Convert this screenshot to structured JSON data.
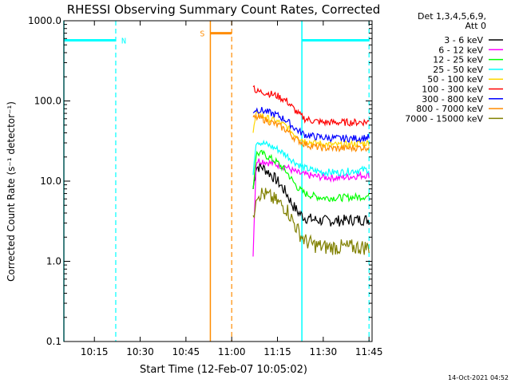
{
  "chart_data": {
    "type": "line",
    "title": "RHESSI Observing Summary Count Rates, Corrected",
    "xlabel": "Start Time (12-Feb-07 10:05:02)",
    "ylabel": "Corrected Count Rate (s⁻¹ detector⁻¹)",
    "xlim": [
      "10:05",
      "11:46"
    ],
    "ylim": [
      0.1,
      1000
    ],
    "yscale": "log",
    "x_ticks": [
      "10:15",
      "10:30",
      "10:45",
      "11:00",
      "11:15",
      "11:30",
      "11:45"
    ],
    "y_ticks": [
      "0.1",
      "1.0",
      "10.0",
      "100.0",
      "1000.0"
    ],
    "legend_header": [
      "Det 1,3,4,5,6,9,",
      "Att 0"
    ],
    "legend_position": "right",
    "timestamp": "14-Oct-2021 04:52",
    "series": [
      {
        "name": "3 - 6 keV",
        "color": "#000000",
        "x": [
          "11:07",
          "11:08",
          "11:10",
          "11:12",
          "11:15",
          "11:18",
          "11:20",
          "11:22",
          "11:24",
          "11:27",
          "11:30",
          "11:35",
          "11:40",
          "11:45"
        ],
        "values": [
          8,
          15,
          15,
          13,
          10,
          7,
          5,
          4,
          3.5,
          3.3,
          3.2,
          3.2,
          3.3,
          3.3
        ]
      },
      {
        "name": "6 - 12 keV",
        "color": "#ff00ff",
        "x": [
          "11:07",
          "11:08",
          "11:10",
          "11:12",
          "11:15",
          "11:18",
          "11:20",
          "11:22",
          "11:24",
          "11:27",
          "11:30",
          "11:35",
          "11:40",
          "11:45"
        ],
        "values": [
          1.2,
          18,
          18,
          17,
          16,
          15,
          13.5,
          12.5,
          12,
          11.5,
          11.2,
          11,
          11.5,
          12
        ]
      },
      {
        "name": "12 - 25 keV",
        "color": "#00ff00",
        "x": [
          "11:07",
          "11:08",
          "11:10",
          "11:12",
          "11:15",
          "11:18",
          "11:20",
          "11:22",
          "11:24",
          "11:27",
          "11:30",
          "11:35",
          "11:40",
          "11:45"
        ],
        "values": [
          8,
          22,
          22,
          20,
          17,
          13,
          10,
          8,
          7,
          6.5,
          6.2,
          6.2,
          6.3,
          6.5
        ]
      },
      {
        "name": "25 - 50 keV",
        "color": "#00ffff",
        "x": [
          "11:07",
          "11:08",
          "11:10",
          "11:12",
          "11:15",
          "11:18",
          "11:20",
          "11:22",
          "11:24",
          "11:27",
          "11:30",
          "11:35",
          "11:40",
          "11:45"
        ],
        "values": [
          13,
          32,
          30,
          28,
          25,
          21,
          18,
          16,
          14.5,
          13.5,
          13,
          12.8,
          13.5,
          14
        ]
      },
      {
        "name": "50 - 100 keV",
        "color": "#ffd700",
        "x": [
          "11:07",
          "11:08",
          "11:10",
          "11:12",
          "11:15",
          "11:18",
          "11:20",
          "11:22",
          "11:24",
          "11:27",
          "11:30",
          "11:35",
          "11:40",
          "11:45"
        ],
        "values": [
          40,
          68,
          65,
          60,
          55,
          48,
          40,
          35,
          32,
          30,
          29,
          28,
          29,
          30
        ]
      },
      {
        "name": "100 - 300 keV",
        "color": "#ff0000",
        "x": [
          "11:07",
          "11:08",
          "11:10",
          "11:12",
          "11:15",
          "11:18",
          "11:20",
          "11:22",
          "11:24",
          "11:27",
          "11:30",
          "11:35",
          "11:40",
          "11:45"
        ],
        "values": [
          160,
          130,
          130,
          125,
          115,
          100,
          82,
          68,
          60,
          56,
          54,
          54,
          54,
          55
        ]
      },
      {
        "name": "300 - 800 keV",
        "color": "#0000ff",
        "x": [
          "11:07",
          "11:08",
          "11:10",
          "11:12",
          "11:15",
          "11:18",
          "11:20",
          "11:22",
          "11:24",
          "11:27",
          "11:30",
          "11:35",
          "11:40",
          "11:45"
        ],
        "values": [
          75,
          78,
          76,
          72,
          66,
          57,
          48,
          42,
          38,
          36,
          35,
          34,
          34,
          35
        ]
      },
      {
        "name": "800 - 7000 keV",
        "color": "#ff8c00",
        "x": [
          "11:07",
          "11:08",
          "11:10",
          "11:12",
          "11:15",
          "11:18",
          "11:20",
          "11:22",
          "11:24",
          "11:27",
          "11:30",
          "11:35",
          "11:40",
          "11:45"
        ],
        "values": [
          60,
          62,
          60,
          56,
          50,
          43,
          36,
          32,
          29,
          27,
          26,
          25.5,
          26,
          26.5
        ]
      },
      {
        "name": "7000 - 15000 keV",
        "color": "#808000",
        "x": [
          "11:07",
          "11:08",
          "11:10",
          "11:12",
          "11:15",
          "11:18",
          "11:20",
          "11:22",
          "11:24",
          "11:27",
          "11:30",
          "11:35",
          "11:40",
          "11:45"
        ],
        "values": [
          3,
          7,
          7,
          6.5,
          5.5,
          4.5,
          3.2,
          2.3,
          1.8,
          1.6,
          1.5,
          1.5,
          1.5,
          1.5
        ]
      }
    ],
    "markers": [
      {
        "label": "N",
        "color": "#00ffff",
        "level": 570,
        "segments": [
          [
            "10:05",
            "10:22"
          ],
          [
            "11:23",
            "11:45"
          ]
        ],
        "solid_lines": [
          "10:05",
          "11:23"
        ],
        "dashed_lines": [
          "10:22",
          "11:45"
        ]
      },
      {
        "label": "S",
        "color": "#ff8c00",
        "level": 700,
        "segments": [
          [
            "10:53",
            "11:00"
          ]
        ],
        "solid_lines": [
          "10:53"
        ],
        "dashed_lines": [
          "11:00"
        ]
      }
    ]
  }
}
